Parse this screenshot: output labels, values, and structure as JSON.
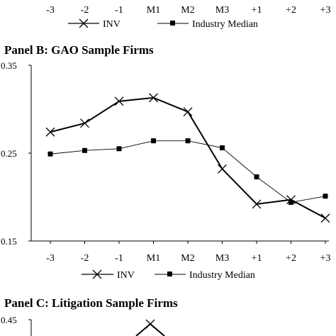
{
  "chart_data": [
    {
      "type": "line",
      "title": "",
      "categories": [
        "-3",
        "-2",
        "-1",
        "M1",
        "M2",
        "M3",
        "+1",
        "+2",
        "+3"
      ],
      "legend": [
        "INV",
        "Industry Median"
      ],
      "note": "partial panel cropped at top of image; only x-axis tick labels and legend visible"
    },
    {
      "type": "line",
      "title": "Panel B: GAO Sample Firms",
      "xlabel": "",
      "ylabel": "",
      "categories": [
        "-3",
        "-2",
        "-1",
        "M1",
        "M2",
        "M3",
        "+1",
        "+2",
        "+3"
      ],
      "ylim": [
        0.15,
        0.35
      ],
      "yticks": [
        "0.35",
        "0.25",
        "0.15"
      ],
      "grid": false,
      "legend_position": "bottom",
      "series": [
        {
          "name": "INV",
          "marker": "x",
          "values": [
            0.274,
            0.284,
            0.309,
            0.313,
            0.297,
            0.232,
            0.192,
            0.197,
            0.176
          ]
        },
        {
          "name": "Industry Median",
          "marker": "square",
          "values": [
            0.249,
            0.253,
            0.255,
            0.264,
            0.264,
            0.256,
            0.223,
            0.194,
            0.201
          ]
        }
      ]
    },
    {
      "type": "line",
      "title": "Panel C: Litigation Sample Firms",
      "yticks": [
        "0.45"
      ],
      "note": "partial panel cropped at bottom of image; only first tick label and top of INV line visible"
    }
  ]
}
